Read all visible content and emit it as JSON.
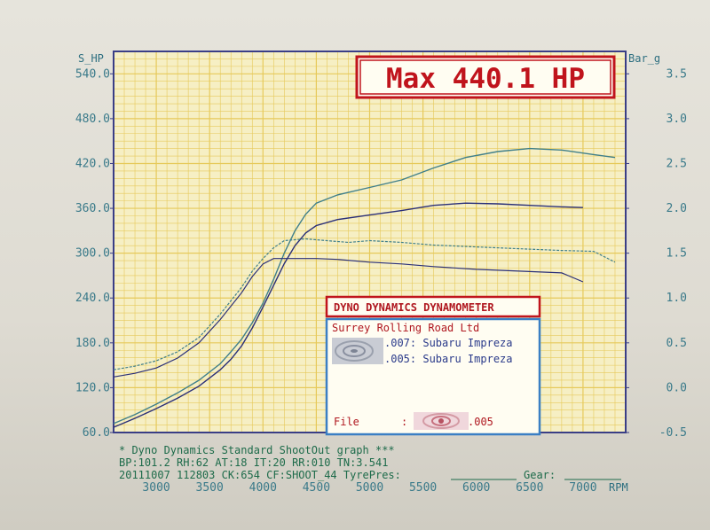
{
  "header": {
    "left_axis_name": "S_HP",
    "right_axis_name": "Bar_g",
    "max_label": "Max 440.1 HP"
  },
  "legend": {
    "title": "DYNO DYNAMICS DYNAMOMETER",
    "company": "Surrey Rolling Road Ltd",
    "runs": [
      {
        "label": ".007: Subaru Impreza"
      },
      {
        "label": ".005: Subaru Impreza"
      }
    ],
    "file_label": "File",
    "file_colon": ":",
    "file_value": ".005"
  },
  "footer": {
    "line1": "* Dyno Dynamics Standard ShootOut graph ***",
    "line2": "BP:101.2 RH:62 AT:18 IT:20  RR:010 TN:3.541",
    "line3_a": "20111007 112803 CK:654 CF:SHOOT_44 TyrePres:",
    "line3_b": "Gear:"
  },
  "colors": {
    "grid": "#e6c95a",
    "plot_bg": "#f6efc4",
    "frame": "#3a3e86",
    "axis_text": "#3a7a8a",
    "max_red": "#c0141c",
    "legend_blue": "#3b7fc4",
    "run_007": "#3f7f8a",
    "run_005": "#2a2f78"
  },
  "chart_data": {
    "type": "line",
    "title": "Max 440.1 HP",
    "xlabel": "RPM",
    "ylabel": "S_HP",
    "y2label": "Bar_g",
    "x_ticks": [
      3000,
      3500,
      4000,
      4500,
      5000,
      5500,
      6000,
      6500,
      7000
    ],
    "y_ticks": [
      "60.0",
      "120.0",
      "180.0",
      "240.0",
      "300.0",
      "360.0",
      "420.0",
      "480.0",
      "540.0"
    ],
    "y2_ticks": [
      "-0.5",
      "0.0",
      "0.5",
      "1.0",
      "1.5",
      "2.0",
      "2.5",
      "3.0",
      "3.5"
    ],
    "xlim": [
      2600,
      7400
    ],
    "ylim": [
      60,
      570
    ],
    "y2lim": [
      -0.5,
      3.75
    ],
    "grid": true,
    "series": [
      {
        "name": ".007: Subaru Impreza",
        "kind": "power",
        "x": [
          2600,
          2800,
          3000,
          3200,
          3400,
          3600,
          3700,
          3800,
          3900,
          4000,
          4100,
          4200,
          4300,
          4400,
          4500,
          4700,
          5000,
          5300,
          5600,
          5900,
          6200,
          6500,
          6800,
          7100,
          7300
        ],
        "y": [
          72,
          84,
          98,
          113,
          130,
          152,
          168,
          185,
          207,
          233,
          265,
          300,
          330,
          352,
          367,
          378,
          388,
          398,
          414,
          428,
          436,
          440,
          438,
          432,
          428
        ]
      },
      {
        "name": ".005: Subaru Impreza",
        "kind": "power",
        "x": [
          2600,
          2800,
          3000,
          3200,
          3400,
          3600,
          3700,
          3800,
          3900,
          4000,
          4100,
          4200,
          4300,
          4400,
          4500,
          4700,
          5000,
          5300,
          5600,
          5900,
          6200,
          6500,
          6800,
          7000
        ],
        "y": [
          67,
          79,
          92,
          106,
          122,
          144,
          158,
          176,
          200,
          228,
          257,
          286,
          310,
          327,
          337,
          345,
          351,
          357,
          364,
          367,
          366,
          364,
          362,
          361
        ]
      },
      {
        "name": ".007: Subaru Impreza",
        "kind": "boost",
        "x": [
          2600,
          2800,
          3000,
          3200,
          3400,
          3600,
          3800,
          3900,
          4000,
          4100,
          4200,
          4400,
          4600,
          4800,
          5000,
          5300,
          5600,
          6000,
          6400,
          6800,
          7100,
          7300
        ],
        "y": [
          0.2,
          0.24,
          0.3,
          0.4,
          0.56,
          0.82,
          1.12,
          1.3,
          1.44,
          1.56,
          1.64,
          1.66,
          1.64,
          1.62,
          1.64,
          1.62,
          1.59,
          1.57,
          1.55,
          1.53,
          1.52,
          1.4
        ]
      },
      {
        "name": ".005: Subaru Impreza",
        "kind": "boost",
        "x": [
          2600,
          2800,
          3000,
          3200,
          3400,
          3600,
          3800,
          3900,
          4000,
          4100,
          4300,
          4500,
          4700,
          5000,
          5300,
          5600,
          6000,
          6400,
          6800,
          7000
        ],
        "y": [
          0.12,
          0.16,
          0.22,
          0.33,
          0.5,
          0.76,
          1.06,
          1.24,
          1.38,
          1.44,
          1.44,
          1.44,
          1.43,
          1.4,
          1.38,
          1.35,
          1.32,
          1.3,
          1.28,
          1.18
        ]
      }
    ]
  }
}
